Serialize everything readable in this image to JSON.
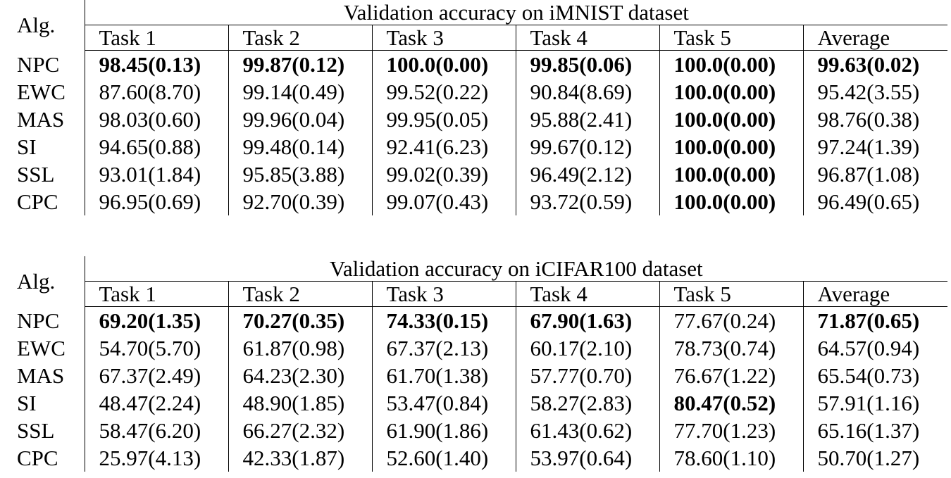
{
  "tables": [
    {
      "title": "Validation accuracy on iMNIST dataset",
      "alg_header": "Alg.",
      "columns": [
        "Task 1",
        "Task 2",
        "Task 3",
        "Task 4",
        "Task 5",
        "Average"
      ],
      "rows": [
        {
          "alg": "NPC",
          "cells": [
            "98.45(0.13)",
            "99.87(0.12)",
            "100.0(0.00)",
            "99.85(0.06)",
            "100.0(0.00)",
            "99.63(0.02)"
          ],
          "bold": [
            true,
            true,
            true,
            true,
            true,
            true
          ]
        },
        {
          "alg": "EWC",
          "cells": [
            "87.60(8.70)",
            "99.14(0.49)",
            "99.52(0.22)",
            "90.84(8.69)",
            "100.0(0.00)",
            "95.42(3.55)"
          ],
          "bold": [
            false,
            false,
            false,
            false,
            true,
            false
          ]
        },
        {
          "alg": "MAS",
          "cells": [
            "98.03(0.60)",
            "99.96(0.04)",
            "99.95(0.05)",
            "95.88(2.41)",
            "100.0(0.00)",
            "98.76(0.38)"
          ],
          "bold": [
            false,
            false,
            false,
            false,
            true,
            false
          ]
        },
        {
          "alg": "SI",
          "cells": [
            "94.65(0.88)",
            "99.48(0.14)",
            "92.41(6.23)",
            "99.67(0.12)",
            "100.0(0.00)",
            "97.24(1.39)"
          ],
          "bold": [
            false,
            false,
            false,
            false,
            true,
            false
          ]
        },
        {
          "alg": "SSL",
          "cells": [
            "93.01(1.84)",
            "95.85(3.88)",
            "99.02(0.39)",
            "96.49(2.12)",
            "100.0(0.00)",
            "96.87(1.08)"
          ],
          "bold": [
            false,
            false,
            false,
            false,
            true,
            false
          ]
        },
        {
          "alg": "CPC",
          "cells": [
            "96.95(0.69)",
            "92.70(0.39)",
            "99.07(0.43)",
            "93.72(0.59)",
            "100.0(0.00)",
            "96.49(0.65)"
          ],
          "bold": [
            false,
            false,
            false,
            false,
            true,
            false
          ]
        }
      ]
    },
    {
      "title": "Validation accuracy on iCIFAR100 dataset",
      "alg_header": "Alg.",
      "columns": [
        "Task 1",
        "Task 2",
        "Task 3",
        "Task 4",
        "Task 5",
        "Average"
      ],
      "rows": [
        {
          "alg": "NPC",
          "cells": [
            "69.20(1.35)",
            "70.27(0.35)",
            "74.33(0.15)",
            "67.90(1.63)",
            "77.67(0.24)",
            "71.87(0.65)"
          ],
          "bold": [
            true,
            true,
            true,
            true,
            false,
            true
          ]
        },
        {
          "alg": "EWC",
          "cells": [
            "54.70(5.70)",
            "61.87(0.98)",
            "67.37(2.13)",
            "60.17(2.10)",
            "78.73(0.74)",
            "64.57(0.94)"
          ],
          "bold": [
            false,
            false,
            false,
            false,
            false,
            false
          ]
        },
        {
          "alg": "MAS",
          "cells": [
            "67.37(2.49)",
            "64.23(2.30)",
            "61.70(1.38)",
            "57.77(0.70)",
            "76.67(1.22)",
            "65.54(0.73)"
          ],
          "bold": [
            false,
            false,
            false,
            false,
            false,
            false
          ]
        },
        {
          "alg": "SI",
          "cells": [
            "48.47(2.24)",
            "48.90(1.85)",
            "53.47(0.84)",
            "58.27(2.83)",
            "80.47(0.52)",
            "57.91(1.16)"
          ],
          "bold": [
            false,
            false,
            false,
            false,
            true,
            false
          ]
        },
        {
          "alg": "SSL",
          "cells": [
            "58.47(6.20)",
            "66.27(2.32)",
            "61.90(1.86)",
            "61.43(0.62)",
            "77.70(1.23)",
            "65.16(1.37)"
          ],
          "bold": [
            false,
            false,
            false,
            false,
            false,
            false
          ]
        },
        {
          "alg": "CPC",
          "cells": [
            "25.97(4.13)",
            "42.33(1.87)",
            "52.60(1.40)",
            "53.97(0.64)",
            "78.60(1.10)",
            "50.70(1.27)"
          ],
          "bold": [
            false,
            false,
            false,
            false,
            false,
            false
          ]
        }
      ]
    }
  ]
}
